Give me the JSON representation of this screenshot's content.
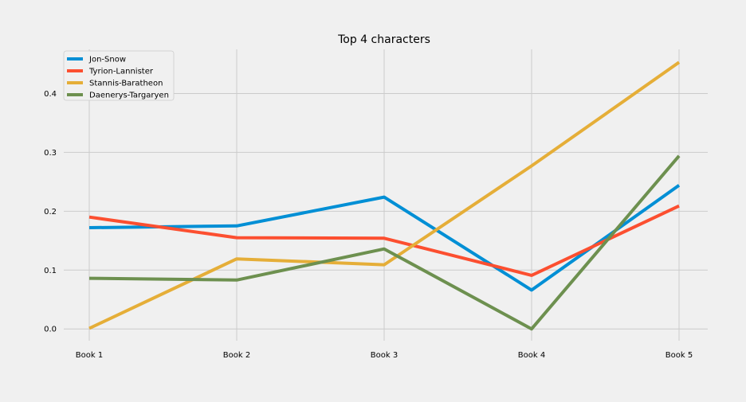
{
  "chart_data": {
    "type": "line",
    "title": "Top 4 characters",
    "xlabel": "",
    "ylabel": "",
    "categories": [
      "Book 1",
      "Book 2",
      "Book 3",
      "Book 4",
      "Book 5"
    ],
    "ylim": [
      -0.02,
      0.475
    ],
    "yticks": [
      0.0,
      0.1,
      0.2,
      0.3,
      0.4
    ],
    "ytick_labels": [
      "0.0",
      "0.1",
      "0.2",
      "0.3",
      "0.4"
    ],
    "grid": true,
    "legend_position": "top-left",
    "series": [
      {
        "name": "Jon-Snow",
        "color": "#008fd5",
        "values": [
          0.172,
          0.175,
          0.224,
          0.066,
          0.244
        ]
      },
      {
        "name": "Tyrion-Lannister",
        "color": "#fc4f30",
        "values": [
          0.19,
          0.155,
          0.154,
          0.091,
          0.209
        ]
      },
      {
        "name": "Stannis-Baratheon",
        "color": "#e5ae38",
        "values": [
          0.001,
          0.119,
          0.109,
          0.277,
          0.453
        ]
      },
      {
        "name": "Daenerys-Targaryen",
        "color": "#6d904f",
        "values": [
          0.086,
          0.083,
          0.136,
          0.0,
          0.294
        ]
      }
    ]
  }
}
